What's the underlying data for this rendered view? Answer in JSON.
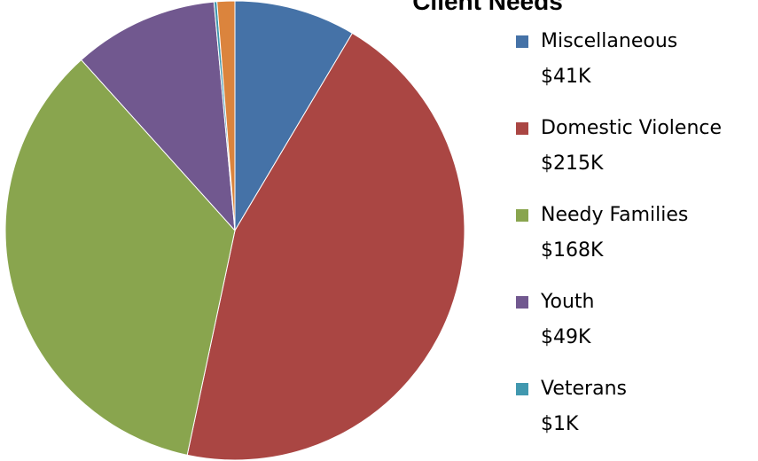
{
  "chart_data": {
    "type": "pie",
    "title": "Client Needs",
    "legend_position": "right",
    "slices": [
      {
        "name": "Miscellaneous",
        "value": 41,
        "label": "$41K",
        "color": "#4572A7"
      },
      {
        "name": "Domestic Violence",
        "value": 215,
        "label": "$215K",
        "color": "#AA4643"
      },
      {
        "name": "Needy Families",
        "value": 168,
        "label": "$168K",
        "color": "#89A54E"
      },
      {
        "name": "Youth",
        "value": 49,
        "label": "$49K",
        "color": "#71588F"
      },
      {
        "name": "Veterans",
        "value": 1,
        "label": "$1K",
        "color": "#4198AF"
      },
      {
        "name": "",
        "value": 6,
        "label": "",
        "color": "#DB843D"
      }
    ]
  }
}
